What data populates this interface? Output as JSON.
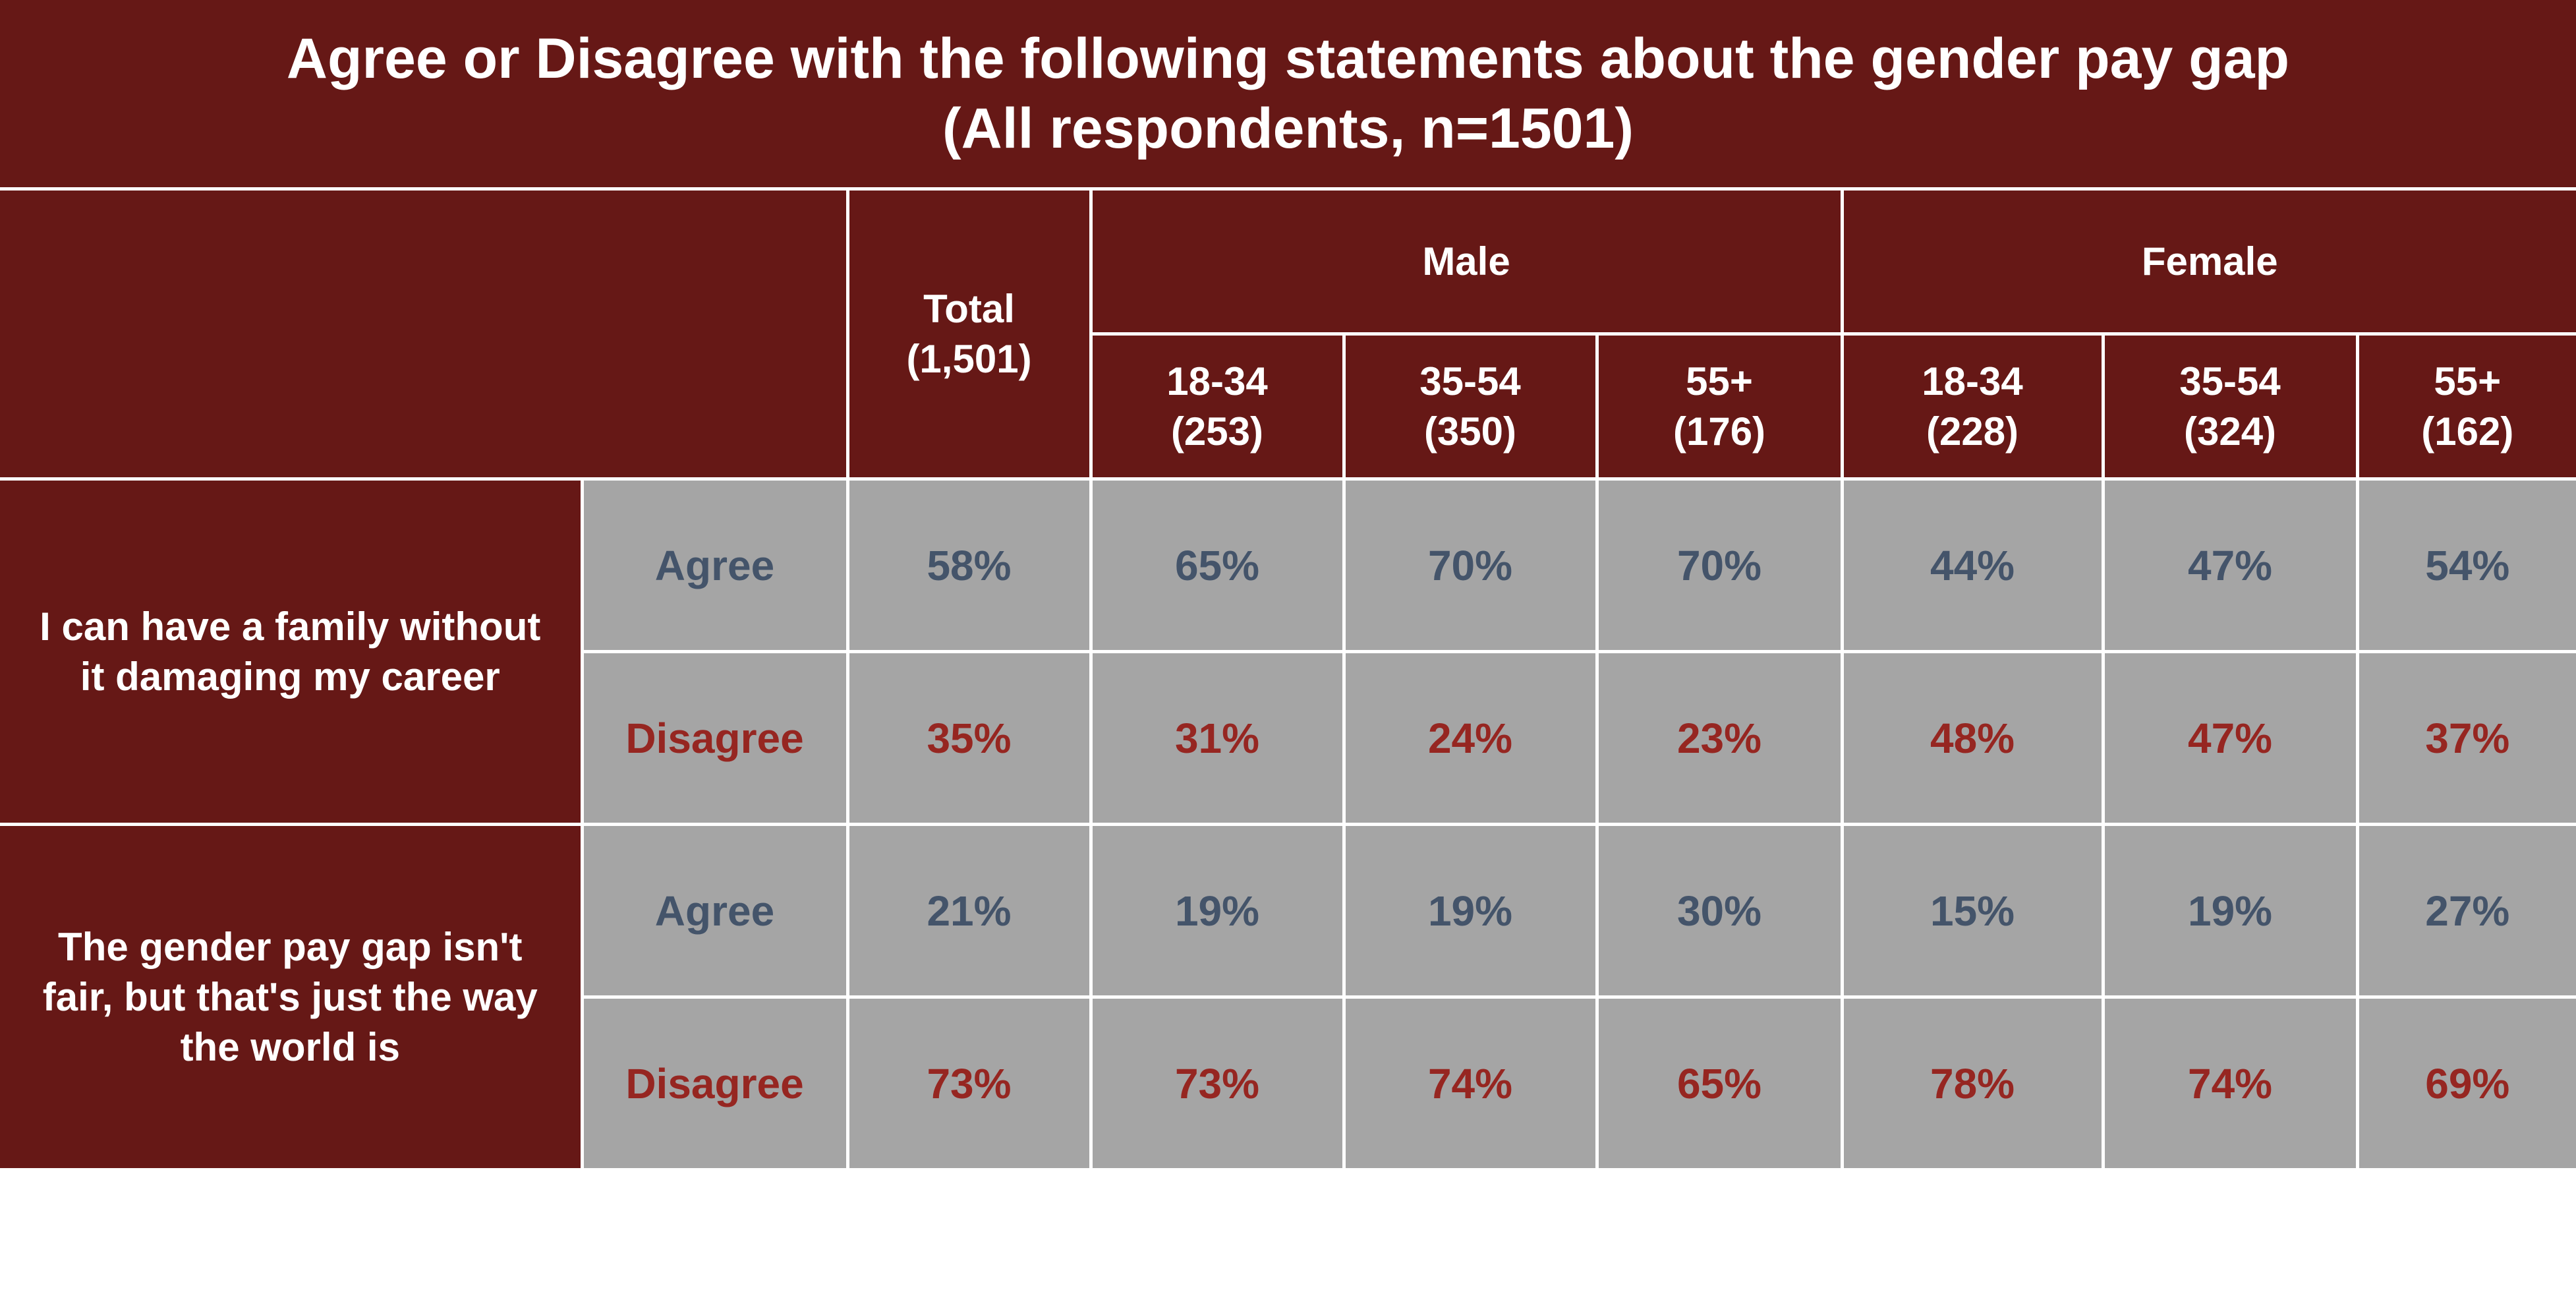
{
  "title": {
    "line1": "Agree or Disagree with the following statements about the gender pay gap",
    "line2": "(All respondents, n=1501)"
  },
  "colors": {
    "header_bg": "#661816",
    "cell_bg": "#a5a5a5",
    "agree_text": "#44546a",
    "disagree_text": "#962621"
  },
  "chart_data": {
    "type": "table",
    "title": "Agree or Disagree with the following statements about the gender pay gap (All respondents, n=1501)",
    "total": {
      "label": "Total",
      "n": "(1,501)"
    },
    "groups": [
      {
        "label": "Male",
        "columns": [
          {
            "age": "18-34",
            "n": "(253)"
          },
          {
            "age": "35-54",
            "n": "(350)"
          },
          {
            "age": "55+",
            "n": "(176)"
          }
        ]
      },
      {
        "label": "Female",
        "columns": [
          {
            "age": "18-34",
            "n": "(228)"
          },
          {
            "age": "35-54",
            "n": "(324)"
          },
          {
            "age": "55+",
            "n": "(162)"
          }
        ]
      }
    ],
    "statements": [
      {
        "label": "I can have a family without it damaging my career",
        "rows": [
          {
            "response": "Agree",
            "values": [
              "58%",
              "65%",
              "70%",
              "70%",
              "44%",
              "47%",
              "54%"
            ]
          },
          {
            "response": "Disagree",
            "values": [
              "35%",
              "31%",
              "24%",
              "23%",
              "48%",
              "47%",
              "37%"
            ]
          }
        ]
      },
      {
        "label": "The gender pay gap isn't fair, but that's just the way the world is",
        "rows": [
          {
            "response": "Agree",
            "values": [
              "21%",
              "19%",
              "19%",
              "30%",
              "15%",
              "19%",
              "27%"
            ]
          },
          {
            "response": "Disagree",
            "values": [
              "73%",
              "73%",
              "74%",
              "65%",
              "78%",
              "74%",
              "69%"
            ]
          }
        ]
      }
    ]
  }
}
